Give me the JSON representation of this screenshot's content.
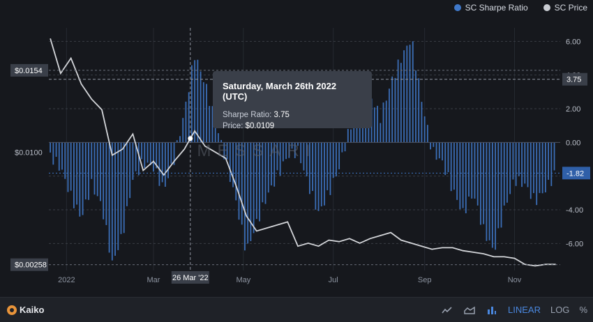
{
  "legend": [
    {
      "label": "SC Sharpe Ratio",
      "color": "#3f78c9"
    },
    {
      "label": "SC Price",
      "color": "#c9ccd2"
    }
  ],
  "tooltip": {
    "title": "Saturday, March 26th 2022 (UTC)",
    "sharpe_label": "Sharpe Ratio:",
    "sharpe_value": "3.75",
    "price_label": "Price:",
    "price_value": "$0.0109"
  },
  "watermark": "MESSARI",
  "footer": {
    "brand": "Kaiko",
    "icons": [
      "line-chart-icon",
      "area-chart-icon",
      "bar-chart-icon"
    ],
    "scale_linear": "LINEAR",
    "scale_log": "LOG",
    "scale_percent": "%"
  },
  "chart_data": {
    "type": "bar",
    "crosshair_date_label": "26 Mar '22",
    "crosshair_sharpe": 3.75,
    "crosshair_price_label": "$0.0154",
    "x_ticks": [
      "2022",
      "Mar",
      "May",
      "Jul",
      "Sep",
      "Nov"
    ],
    "y_right_ticks": [
      "6.00",
      "4.00",
      "2.00",
      "0.00",
      "-2.00",
      "-4.00",
      "-6.00"
    ],
    "y_right_range": [
      -7.6,
      6.8
    ],
    "y_left_labels": [
      "$0.0154",
      "$0.0100",
      "$0.00258"
    ],
    "last_sharpe_label": "-1.82",
    "series": [
      {
        "name": "SC Sharpe Ratio",
        "color": "#3f78c9",
        "kind": "bar",
        "x": [
          "2021-12-21",
          "2021-12-28",
          "2022-01-04",
          "2022-01-11",
          "2022-01-18",
          "2022-01-25",
          "2022-02-01",
          "2022-02-08",
          "2022-02-15",
          "2022-02-22",
          "2022-03-01",
          "2022-03-08",
          "2022-03-15",
          "2022-03-22",
          "2022-03-26",
          "2022-03-29",
          "2022-04-05",
          "2022-04-12",
          "2022-04-19",
          "2022-04-26",
          "2022-05-03",
          "2022-05-10",
          "2022-05-17",
          "2022-05-24",
          "2022-05-31",
          "2022-06-07",
          "2022-06-14",
          "2022-06-21",
          "2022-06-28",
          "2022-07-05",
          "2022-07-12",
          "2022-07-19",
          "2022-07-26",
          "2022-08-02",
          "2022-08-09",
          "2022-08-16",
          "2022-08-23",
          "2022-08-30",
          "2022-09-06",
          "2022-09-13",
          "2022-09-20",
          "2022-09-27",
          "2022-10-04",
          "2022-10-11",
          "2022-10-18",
          "2022-10-25",
          "2022-11-01",
          "2022-11-08",
          "2022-11-15",
          "2022-11-22",
          "2022-11-29"
        ],
        "values": [
          -0.8,
          -1.5,
          -3.2,
          -4.5,
          -2.5,
          -3.8,
          -7.2,
          -5.5,
          -2.2,
          -1.2,
          -1.5,
          -2.8,
          -1.0,
          1.8,
          3.75,
          5.2,
          3.5,
          1.2,
          -1.0,
          -3.5,
          -6.5,
          -4.8,
          -3.2,
          -2.0,
          -0.8,
          -0.5,
          -2.5,
          -4.2,
          -3.0,
          -1.5,
          0.8,
          2.2,
          2.8,
          1.5,
          3.5,
          5.0,
          6.2,
          2.5,
          -0.5,
          -1.2,
          -2.8,
          -4.2,
          -3.0,
          -5.2,
          -6.5,
          -4.0,
          -2.2,
          -2.5,
          -3.5,
          -2.8,
          -1.82
        ]
      },
      {
        "name": "SC Price",
        "color": "#d4d6da",
        "kind": "line",
        "x": [
          "2021-12-21",
          "2021-12-28",
          "2022-01-04",
          "2022-01-11",
          "2022-01-18",
          "2022-01-25",
          "2022-02-01",
          "2022-02-08",
          "2022-02-15",
          "2022-02-22",
          "2022-03-01",
          "2022-03-08",
          "2022-03-15",
          "2022-03-22",
          "2022-03-26",
          "2022-03-29",
          "2022-04-05",
          "2022-04-12",
          "2022-04-19",
          "2022-04-26",
          "2022-05-03",
          "2022-05-10",
          "2022-05-17",
          "2022-05-24",
          "2022-05-31",
          "2022-06-07",
          "2022-06-14",
          "2022-06-21",
          "2022-06-28",
          "2022-07-05",
          "2022-07-12",
          "2022-07-19",
          "2022-07-26",
          "2022-08-02",
          "2022-08-09",
          "2022-08-16",
          "2022-08-23",
          "2022-08-30",
          "2022-09-06",
          "2022-09-13",
          "2022-09-20",
          "2022-09-27",
          "2022-10-04",
          "2022-10-11",
          "2022-10-18",
          "2022-10-25",
          "2022-11-01",
          "2022-11-08",
          "2022-11-15",
          "2022-11-22",
          "2022-11-29"
        ],
        "values": [
          0.0175,
          0.0152,
          0.0162,
          0.0145,
          0.0135,
          0.0128,
          0.0098,
          0.0102,
          0.0112,
          0.0088,
          0.0094,
          0.0085,
          0.0094,
          0.0102,
          0.0109,
          0.0114,
          0.0104,
          0.01,
          0.0096,
          0.0078,
          0.0058,
          0.0048,
          0.005,
          0.0052,
          0.0054,
          0.0038,
          0.004,
          0.0038,
          0.0042,
          0.0041,
          0.0043,
          0.004,
          0.0043,
          0.0045,
          0.0047,
          0.0042,
          0.004,
          0.0038,
          0.0036,
          0.0037,
          0.0037,
          0.0035,
          0.0034,
          0.0033,
          0.0031,
          0.0031,
          0.003,
          0.0026,
          0.0025,
          0.0026,
          0.0026
        ]
      }
    ]
  }
}
